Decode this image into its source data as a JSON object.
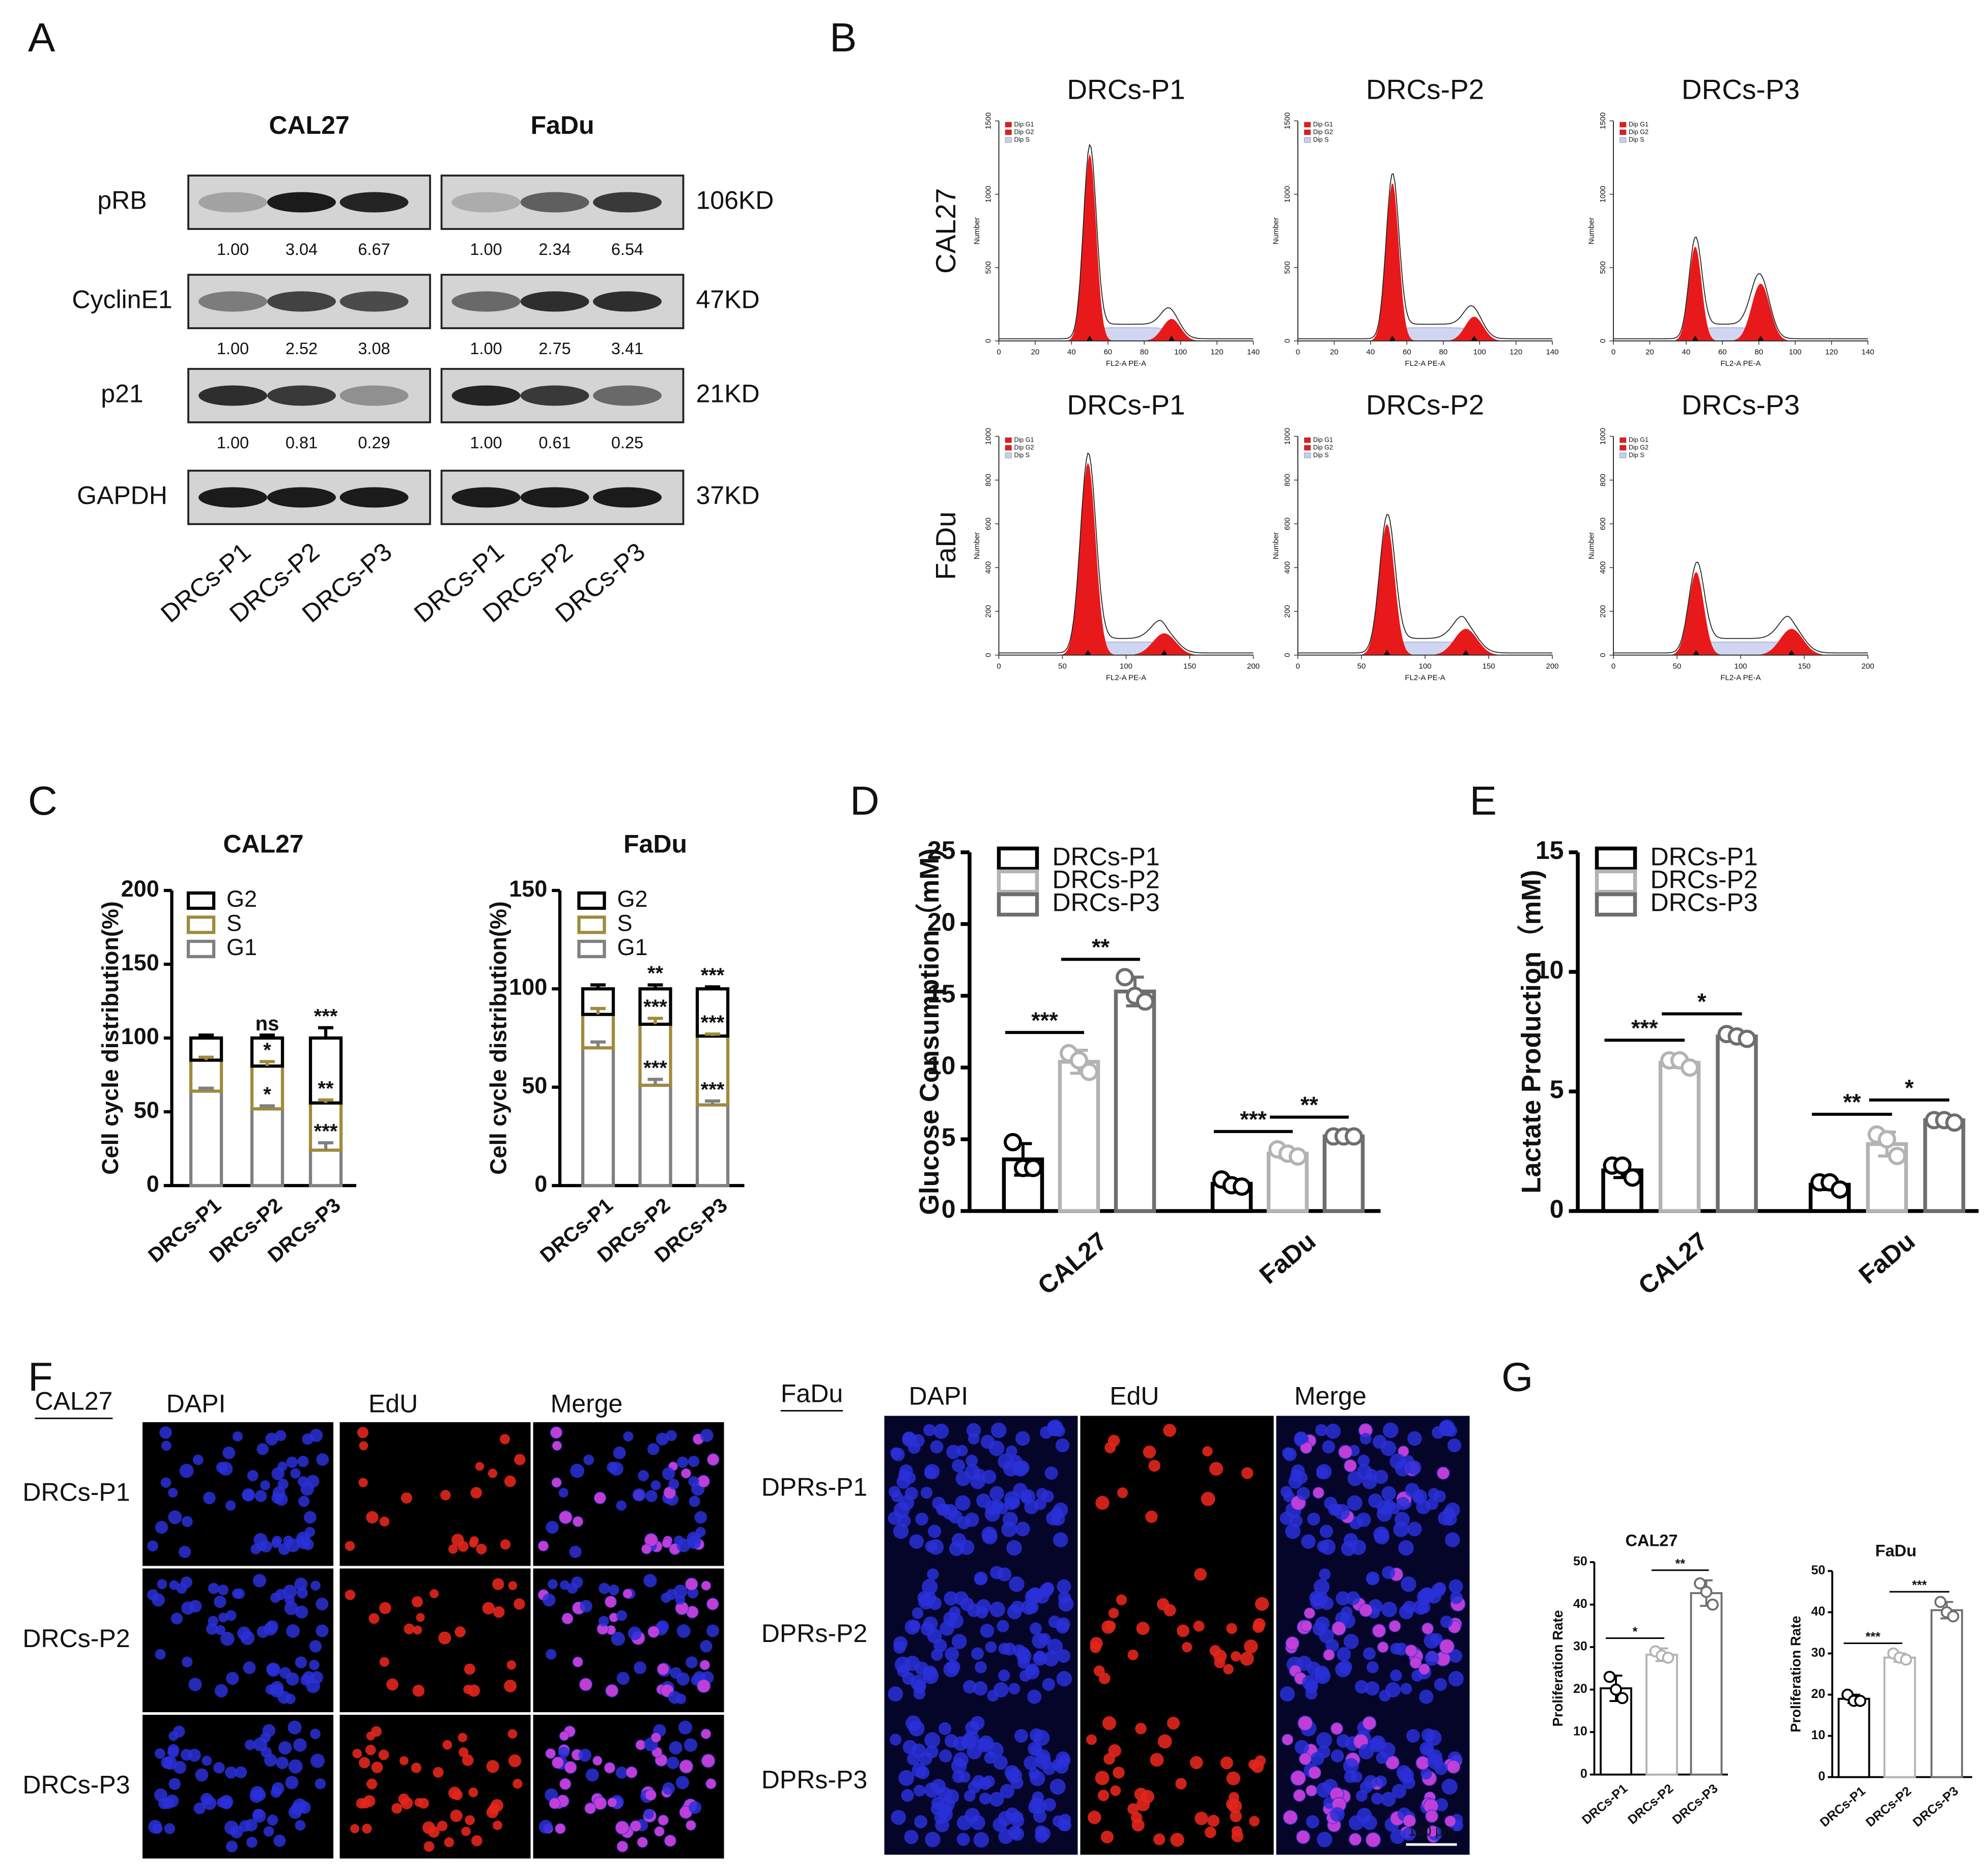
{
  "panel_labels": [
    "A",
    "B",
    "C",
    "D",
    "E",
    "F",
    "G"
  ],
  "western_blot": {
    "cell_lines": [
      "CAL27",
      "FaDu"
    ],
    "lanes": [
      "DRCs-P1",
      "DRCs-P2",
      "DRCs-P3"
    ],
    "proteins": [
      {
        "name": "pRB",
        "size": "106KD",
        "quantification": [
          [
            "1.00",
            "3.04",
            "6.67"
          ],
          [
            "1.00",
            "2.34",
            "6.54"
          ]
        ]
      },
      {
        "name": "CyclinE1",
        "size": "47KD",
        "quantification": [
          [
            "1.00",
            "2.52",
            "3.08"
          ],
          [
            "1.00",
            "2.75",
            "3.41"
          ]
        ]
      },
      {
        "name": "p21",
        "size": "21KD",
        "quantification": [
          [
            "1.00",
            "0.81",
            "0.29"
          ],
          [
            "1.00",
            "0.61",
            "0.25"
          ]
        ]
      },
      {
        "name": "GAPDH",
        "size": "37KD"
      }
    ]
  },
  "flow_cytometry": {
    "columns": [
      "DRCs-P1",
      "DRCs-P2",
      "DRCs-P3"
    ],
    "rows": [
      {
        "label": "CAL27",
        "xticks": [
          0,
          20,
          40,
          60,
          80,
          100,
          120,
          140
        ],
        "yticks": [
          0,
          500,
          1000,
          1500
        ]
      },
      {
        "label": "FaDu",
        "xticks": [
          0,
          50,
          100,
          150,
          200
        ],
        "yticks": [
          0,
          200,
          400,
          600,
          800,
          1000
        ]
      }
    ],
    "x_label": "FL2-A PE-A",
    "y_label": "Number",
    "legend": [
      "Dip G1",
      "Dip G2",
      "Dip S"
    ],
    "legend_colors": [
      "#e8191a",
      "#e8191a",
      "#c8d0f0"
    ]
  },
  "chart_data": [
    {
      "type": "bar",
      "stacked": true,
      "title": "CAL27",
      "y_label": "Cell cycle distribution(%)",
      "categories": [
        "DRCs-P1",
        "DRCs-P2",
        "DRCs-P3"
      ],
      "series": [
        {
          "name": "G1",
          "color": "#808080",
          "values": [
            64,
            52,
            24
          ],
          "errors": [
            2,
            2,
            5
          ],
          "labels": [
            null,
            "*",
            "***"
          ]
        },
        {
          "name": "S",
          "color": "#a08a3c",
          "values": [
            21,
            29,
            32
          ],
          "errors": [
            2,
            3,
            2
          ],
          "labels": [
            null,
            "*",
            "**"
          ]
        },
        {
          "name": "G2",
          "color": "#000000",
          "values": [
            15,
            19,
            44
          ],
          "errors": [
            2,
            2,
            7
          ],
          "labels": [
            null,
            "ns",
            "***"
          ]
        }
      ],
      "ylim": [
        0,
        200
      ],
      "yticks": [
        0,
        50,
        100,
        150,
        200
      ]
    },
    {
      "type": "bar",
      "stacked": true,
      "title": "FaDu",
      "y_label": "Cell cycle distribution(%)",
      "categories": [
        "DRCs-P1",
        "DRCs-P2",
        "DRCs-P3"
      ],
      "series": [
        {
          "name": "G1",
          "color": "#808080",
          "values": [
            70,
            51,
            41
          ],
          "errors": [
            3,
            3,
            2
          ],
          "labels": [
            null,
            "***",
            "***"
          ]
        },
        {
          "name": "S",
          "color": "#a08a3c",
          "values": [
            17,
            31,
            35
          ],
          "errors": [
            3,
            3,
            1
          ],
          "labels": [
            null,
            "***",
            "***"
          ]
        },
        {
          "name": "G2",
          "color": "#000000",
          "values": [
            13,
            18,
            24
          ],
          "errors": [
            2,
            2,
            1
          ],
          "labels": [
            null,
            "**",
            "***"
          ]
        }
      ],
      "ylim": [
        0,
        150
      ],
      "yticks": [
        0,
        50,
        100,
        150
      ]
    },
    {
      "type": "bar",
      "y_label": "Glucose Consumption（mM)",
      "categories": [
        "CAL27",
        "FaDu"
      ],
      "series": [
        {
          "name": "DRCs-P1",
          "color": "#000000",
          "values": [
            3.6,
            1.9
          ],
          "errors": [
            1.1,
            0.3
          ],
          "points": [
            [
              4.8,
              3.0,
              3.0
            ],
            [
              2.2,
              1.8,
              1.7
            ]
          ]
        },
        {
          "name": "DRCs-P2",
          "color": "#b3b3b3",
          "values": [
            10.4,
            4.0
          ],
          "errors": [
            0.8,
            0.3
          ],
          "points": [
            [
              11.0,
              10.5,
              9.7
            ],
            [
              4.3,
              4.0,
              3.8
            ]
          ]
        },
        {
          "name": "DRCs-P3",
          "color": "#6e6e6e",
          "values": [
            15.3,
            5.2
          ],
          "errors": [
            1.0,
            0.1
          ],
          "points": [
            [
              16.3,
              15.0,
              14.6
            ],
            [
              5.2,
              5.2,
              5.2
            ]
          ]
        }
      ],
      "significance": [
        [
          "***",
          "**"
        ],
        [
          "***",
          "**"
        ]
      ],
      "ylim": [
        0,
        25
      ],
      "yticks": [
        0,
        5,
        10,
        15,
        20,
        25
      ]
    },
    {
      "type": "bar",
      "y_label": "Lactate Production（mM)",
      "categories": [
        "CAL27",
        "FaDu"
      ],
      "series": [
        {
          "name": "DRCs-P1",
          "color": "#000000",
          "values": [
            1.7,
            1.1
          ],
          "errors": [
            0.3,
            0.2
          ],
          "points": [
            [
              1.9,
              1.9,
              1.4
            ],
            [
              1.2,
              1.2,
              0.9
            ]
          ]
        },
        {
          "name": "DRCs-P2",
          "color": "#b3b3b3",
          "values": [
            6.2,
            2.8
          ],
          "errors": [
            0.2,
            0.5
          ],
          "points": [
            [
              6.3,
              6.3,
              6.0
            ],
            [
              3.2,
              3.0,
              2.3
            ]
          ]
        },
        {
          "name": "DRCs-P3",
          "color": "#6e6e6e",
          "values": [
            7.3,
            3.8
          ],
          "errors": [
            0.2,
            0.1
          ],
          "points": [
            [
              7.4,
              7.3,
              7.2
            ],
            [
              3.8,
              3.8,
              3.7
            ]
          ]
        }
      ],
      "significance": [
        [
          "***",
          "*"
        ],
        [
          "**",
          "*"
        ]
      ],
      "ylim": [
        0,
        15
      ],
      "yticks": [
        0,
        5,
        10,
        15
      ]
    },
    {
      "type": "bar",
      "title": "CAL27",
      "y_label": "Proliferation Rate",
      "categories": [
        "DRCs-P1",
        "DRCs-P2",
        "DRCs-P3"
      ],
      "values": [
        20.3,
        28.2,
        42.7
      ],
      "errors": [
        3,
        1.5,
        3
      ],
      "points": [
        [
          23,
          20,
          18
        ],
        [
          29,
          28,
          27.5
        ],
        [
          45,
          43,
          40
        ]
      ],
      "colors": [
        "#000000",
        "#b3b3b3",
        "#6e6e6e"
      ],
      "significance": [
        "*",
        "**"
      ],
      "ylim": [
        0,
        50
      ],
      "yticks": [
        0,
        10,
        20,
        30,
        40,
        50
      ]
    },
    {
      "type": "bar",
      "title": "FaDu",
      "y_label": "Proliferation Rate",
      "categories": [
        "DRCs-P1",
        "DRCs-P2",
        "DRCs-P3"
      ],
      "values": [
        19,
        29,
        40.5
      ],
      "errors": [
        1,
        1,
        2
      ],
      "points": [
        [
          20,
          18.5,
          18.5
        ],
        [
          30,
          29,
          28.5
        ],
        [
          42.5,
          40,
          39
        ]
      ],
      "colors": [
        "#000000",
        "#b3b3b3",
        "#6e6e6e"
      ],
      "significance": [
        "***",
        "***"
      ],
      "ylim": [
        0,
        50
      ],
      "yticks": [
        0,
        10,
        20,
        30,
        40,
        50
      ]
    }
  ],
  "edu_staining": {
    "stains": [
      "DAPI",
      "EdU",
      "Merge"
    ],
    "colors": [
      "#1f6fe0",
      "#e8201c",
      "#9b3fc8"
    ],
    "groups": [
      {
        "cell_line": "CAL27",
        "rows": [
          "DRCs-P1",
          "DRCs-P2",
          "DRCs-P3"
        ]
      },
      {
        "cell_line": "FaDu",
        "rows": [
          "DPRs-P1",
          "DPRs-P2",
          "DPRs-P3"
        ]
      }
    ],
    "scale_bar": "100 μm"
  }
}
